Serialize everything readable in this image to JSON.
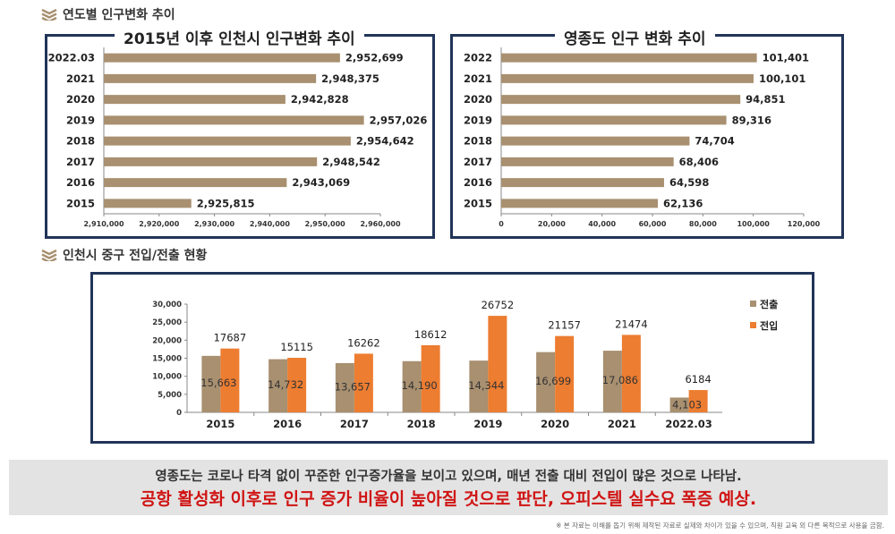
{
  "sections": {
    "annual_trend_title": "연도별 인구변화 추이",
    "migration_title": "인천시 중구 전입/전출 현황"
  },
  "summary": {
    "line1": "영종도는 코로나 타격 없이 꾸준한 인구증가율을 보이고 있으며, 매년 전출 대비 전입이 많은 것으로 나타남.",
    "line2": "공항 활성화 이후로 인구 증가 비율이 높아질 것으로 판단, 오피스텔 실수요 폭증 예상."
  },
  "footnote": "※ 본 자료는 이해를 돕기 위해 제작된 자료로 실제와 차이가 있을 수 있으며, 직원 교육 외 다른 목적으로 사용을 금함.",
  "colors": {
    "bar": "#a89070",
    "move_out": "#a89070",
    "move_in": "#ed7d31",
    "frame": "#213459"
  },
  "chart_data": [
    {
      "type": "bar",
      "orientation": "horizontal",
      "title": "2015년 이후 인천시 인구변화 추이",
      "categories": [
        "2022.03",
        "2021",
        "2020",
        "2019",
        "2018",
        "2017",
        "2016",
        "2015"
      ],
      "values": [
        2952699,
        2948375,
        2942828,
        2957026,
        2954642,
        2948542,
        2943069,
        2925815
      ],
      "value_labels": [
        "2,952,699",
        "2,948,375",
        "2,942,828",
        "2,957,026",
        "2,954,642",
        "2,948,542",
        "2,943,069",
        "2,925,815"
      ],
      "xlim": [
        2910000,
        2960000
      ],
      "xticks": [
        "2,910,000",
        "2,920,000",
        "2,930,000",
        "2,940,000",
        "2,950,000",
        "2,960,000"
      ],
      "grid": false
    },
    {
      "type": "bar",
      "orientation": "horizontal",
      "title": "영종도 인구 변화 추이",
      "categories": [
        "2022",
        "2021",
        "2020",
        "2019",
        "2018",
        "2017",
        "2016",
        "2015"
      ],
      "values": [
        101401,
        100101,
        94851,
        89316,
        74704,
        68406,
        64598,
        62136
      ],
      "value_labels": [
        "101,401",
        "100,101",
        "94,851",
        "89,316",
        "74,704",
        "68,406",
        "64,598",
        "62,136"
      ],
      "xlim": [
        0,
        120000
      ],
      "xticks": [
        "0",
        "20,000",
        "40,000",
        "60,000",
        "80,000",
        "100,000",
        "120,000"
      ],
      "grid": false
    },
    {
      "type": "bar",
      "orientation": "vertical",
      "title": "",
      "categories": [
        "2015",
        "2016",
        "2017",
        "2018",
        "2019",
        "2020",
        "2021",
        "2022.03"
      ],
      "series": [
        {
          "name": "전출",
          "values": [
            15663,
            14732,
            13657,
            14190,
            14344,
            16699,
            17086,
            4103
          ],
          "labels": [
            "15,663",
            "14,732",
            "13,657",
            "14,190",
            "14,344",
            "16,699",
            "17,086",
            "4,103"
          ]
        },
        {
          "name": "전입",
          "values": [
            17687,
            15115,
            16262,
            18612,
            26752,
            21157,
            21474,
            6184
          ],
          "labels": [
            "17687",
            "15115",
            "16262",
            "18612",
            "26752",
            "21157",
            "21474",
            "6184"
          ]
        }
      ],
      "ylim": [
        0,
        30000
      ],
      "yticks": [
        "0",
        "5,000",
        "10,000",
        "15,000",
        "20,000",
        "25,000",
        "30,000"
      ],
      "legend": "right",
      "grid": false
    }
  ]
}
